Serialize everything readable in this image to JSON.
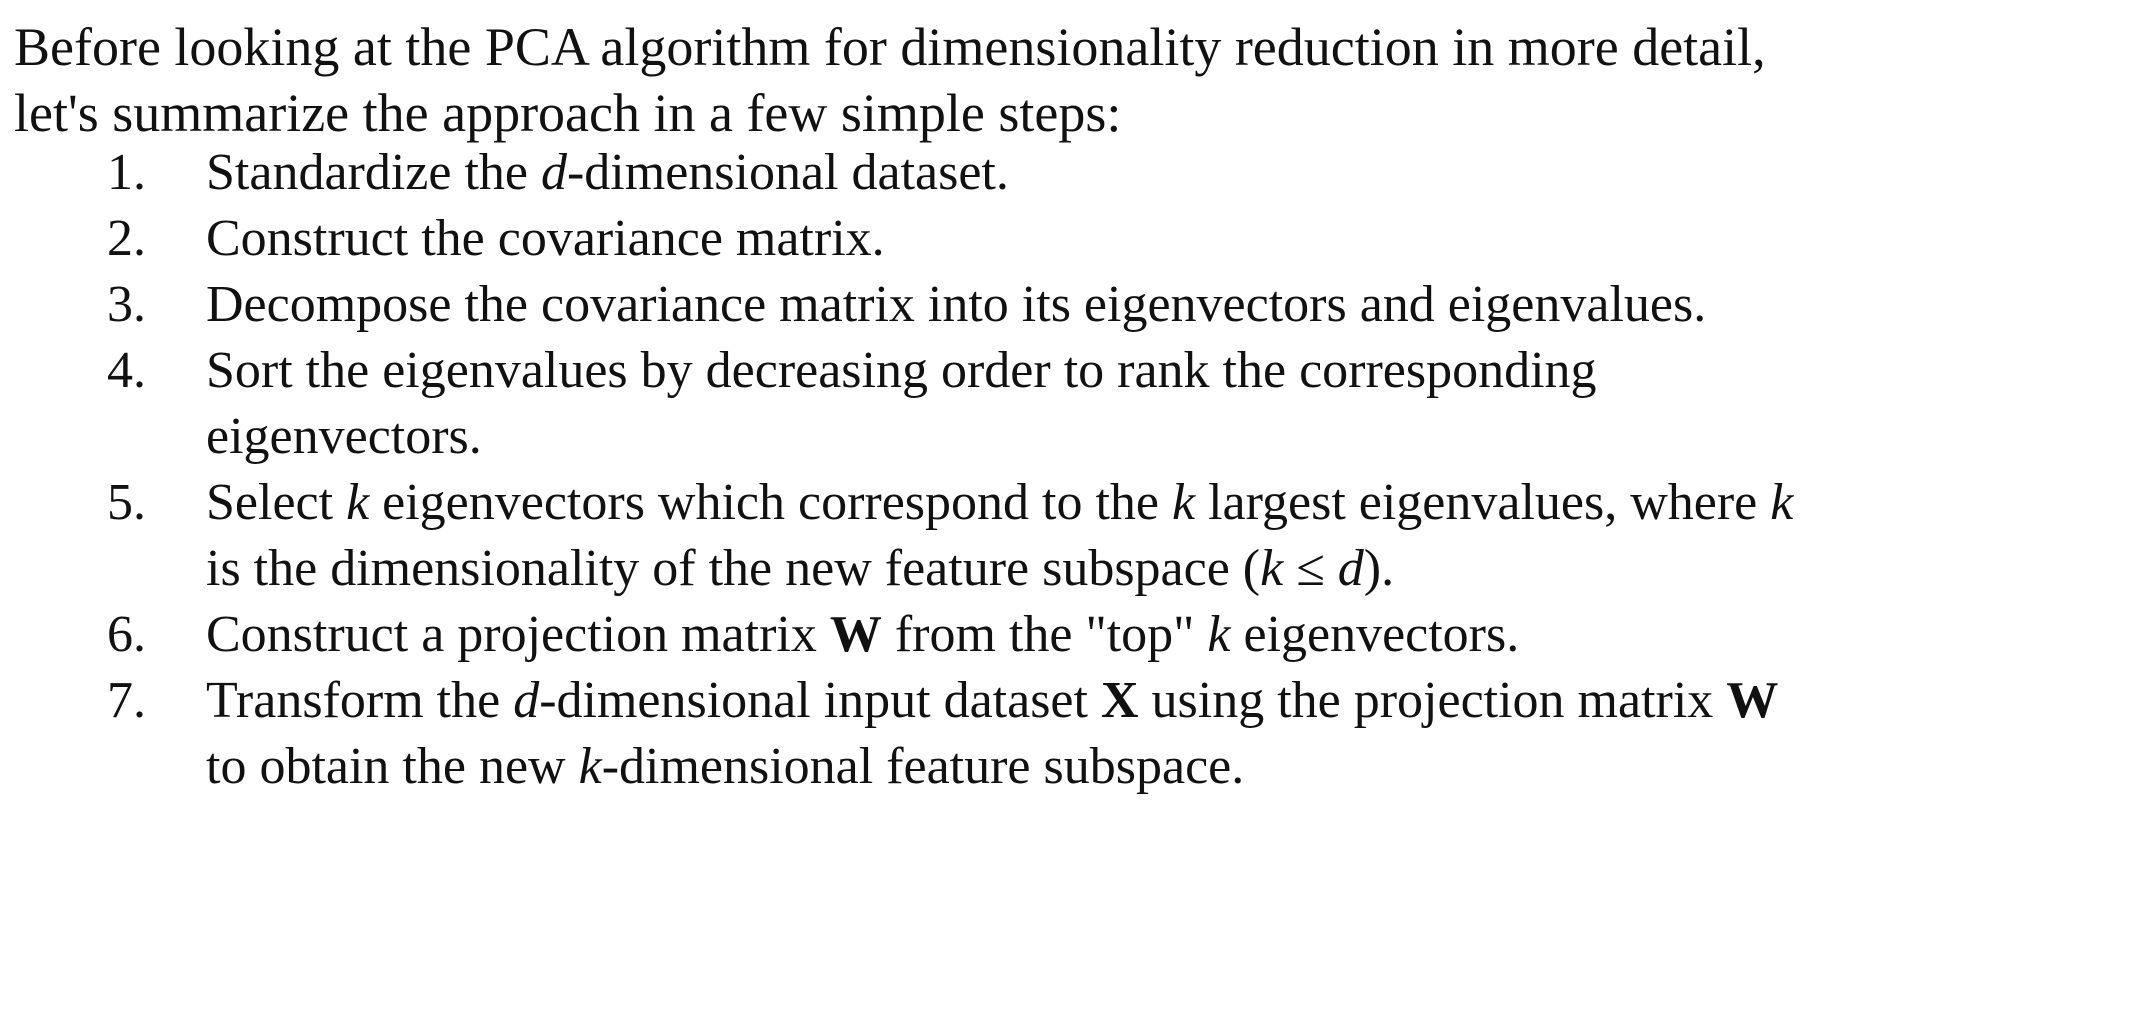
{
  "intro": {
    "line1": "Before looking at the PCA algorithm for dimensionality reduction in more detail,",
    "line2": "let's summarize the approach in a few simple steps:"
  },
  "steps": [
    {
      "number": "1.",
      "a": "Standardize the ",
      "var": "d",
      "b": "-dimensional dataset."
    },
    {
      "number": "2.",
      "text": "Construct the covariance matrix."
    },
    {
      "number": "3.",
      "text": "Decompose the covariance matrix into its eigenvectors and eigenvalues."
    },
    {
      "number": "4.",
      "line1": "Sort the eigenvalues by decreasing order to rank the corresponding",
      "line2": "eigenvectors."
    },
    {
      "number": "5.",
      "a": "Select ",
      "k": "k",
      "b": " eigenvectors which correspond to the ",
      "c": " largest eigenvalues, where ",
      "d_text": "is the dimensionality of the new feature subspace (",
      "leq": " ≤ ",
      "dvar": "d",
      "e": ")."
    },
    {
      "number": "6.",
      "a": "Construct a projection matrix ",
      "W": "W",
      "b": " from the \"top\" ",
      "k": "k",
      "c": " eigenvectors."
    },
    {
      "number": "7.",
      "a": "Transform the ",
      "d": "d",
      "b": "-dimensional input dataset ",
      "X": "X",
      "c": " using the projection matrix ",
      "W": "W",
      "line2a": "to obtain the new ",
      "k": "k",
      "line2b": "-dimensional feature subspace."
    }
  ]
}
